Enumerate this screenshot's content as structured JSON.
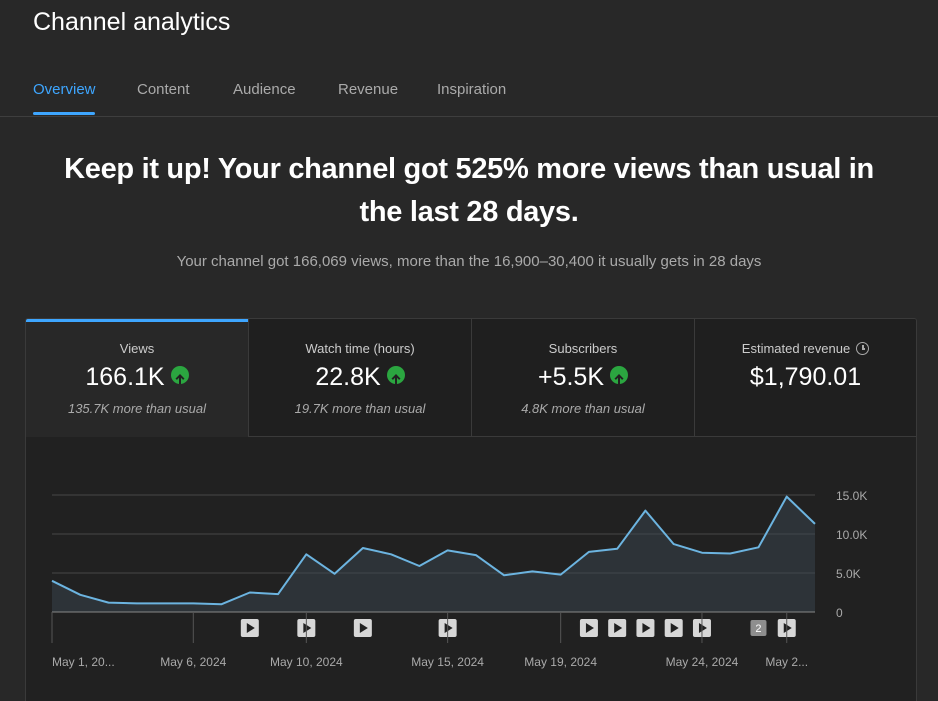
{
  "header": {
    "title": "Channel analytics"
  },
  "tabs": [
    {
      "label": "Overview",
      "active": true
    },
    {
      "label": "Content"
    },
    {
      "label": "Audience"
    },
    {
      "label": "Revenue"
    },
    {
      "label": "Inspiration"
    }
  ],
  "summary": {
    "headline_line1": "Keep it up! Your channel got 525% more views than usual in",
    "headline_line2": "the last 28 days.",
    "subtext": "Your channel got 166,069 views, more than the 16,900–30,400 it usually gets in 28 days"
  },
  "metrics": [
    {
      "label": "Views",
      "value": "166.1K",
      "trend_icon": "arrow-up-icon",
      "note": "135.7K more than usual",
      "active": true
    },
    {
      "label": "Watch time (hours)",
      "value": "22.8K",
      "trend_icon": "arrow-up-icon",
      "note": "19.7K more than usual"
    },
    {
      "label": "Subscribers",
      "value": "+5.5K",
      "trend_icon": "arrow-up-icon",
      "note": "4.8K more than usual"
    },
    {
      "label": "Estimated revenue",
      "value": "$1,790.01",
      "info_icon": "clock-icon"
    }
  ],
  "colors": {
    "accent": "#3ea6ff",
    "positive": "#2ba640",
    "line": "#6cb4e0"
  },
  "chart_data": {
    "type": "area",
    "x": [
      "May 1",
      "May 2",
      "May 3",
      "May 4",
      "May 5",
      "May 6",
      "May 7",
      "May 8",
      "May 9",
      "May 10",
      "May 11",
      "May 12",
      "May 13",
      "May 14",
      "May 15",
      "May 16",
      "May 17",
      "May 18",
      "May 19",
      "May 20",
      "May 21",
      "May 22",
      "May 23",
      "May 24",
      "May 25",
      "May 26",
      "May 27",
      "May 28"
    ],
    "series": [
      {
        "values": [
          4000,
          2200,
          1200,
          1100,
          1100,
          1100,
          1000,
          2500,
          2300,
          7400,
          4900,
          8200,
          7400,
          5900,
          7900,
          7300,
          4700,
          5200,
          4800,
          7700,
          8100,
          13000,
          8700,
          7600,
          7500,
          8300,
          14800,
          11300
        ]
      }
    ],
    "ylim": [
      0,
      15000
    ],
    "y_ticks": [
      "15.0K",
      "10.0K",
      "5.0K",
      "0"
    ],
    "x_tick_labels": [
      {
        "label": "May 1, 20...",
        "index": 0
      },
      {
        "label": "May 6, 2024",
        "index": 5
      },
      {
        "label": "May 10, 2024",
        "index": 9
      },
      {
        "label": "May 15, 2024",
        "index": 14
      },
      {
        "label": "May 19, 2024",
        "index": 18
      },
      {
        "label": "May 24, 2024",
        "index": 23
      },
      {
        "label": "May 2...",
        "index": 26
      }
    ],
    "video_markers": [
      {
        "index": 7,
        "type": "play"
      },
      {
        "index": 9,
        "type": "play"
      },
      {
        "index": 11,
        "type": "play"
      },
      {
        "index": 14,
        "type": "play"
      },
      {
        "index": 19,
        "type": "play"
      },
      {
        "index": 20,
        "type": "play"
      },
      {
        "index": 21,
        "type": "play"
      },
      {
        "index": 22,
        "type": "play"
      },
      {
        "index": 23,
        "type": "play"
      },
      {
        "index": 25,
        "type": "count",
        "label": "2"
      },
      {
        "index": 26,
        "type": "play"
      }
    ],
    "grid": true
  }
}
